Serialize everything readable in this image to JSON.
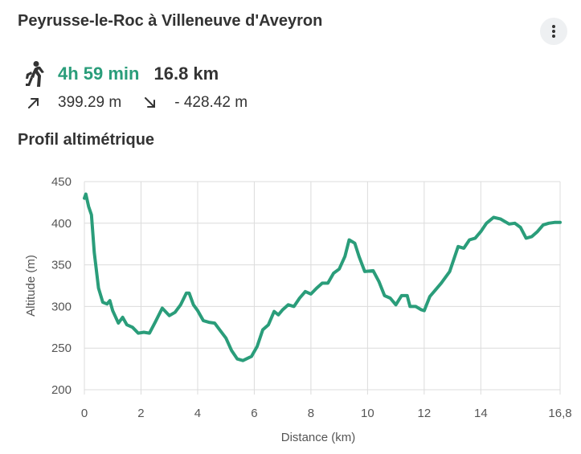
{
  "route": {
    "title": "Peyrusse-le-Roc à Villeneuve d'Aveyron",
    "duration": "4h 59 min",
    "distance": "16.8 km",
    "ascent": "399.29 m",
    "descent": "- 428.42 m",
    "accent_color": "#2a9d7a"
  },
  "icons": {
    "menu": "more-vertical-icon",
    "walk": "walking-person-icon",
    "ascent": "arrow-up-right-icon",
    "descent": "arrow-down-right-icon"
  },
  "profile": {
    "section_title": "Profil altimétrique"
  },
  "chart_data": {
    "type": "line",
    "xlabel": "Distance (km)",
    "ylabel": "Altitude (m)",
    "xlim": [
      0,
      16.8
    ],
    "ylim": [
      200,
      450
    ],
    "x_ticks": [
      "0",
      "2",
      "4",
      "6",
      "8",
      "10",
      "12",
      "14",
      "16,8"
    ],
    "x_tick_values": [
      0,
      2,
      4,
      6,
      8,
      10,
      12,
      14,
      16.8
    ],
    "y_ticks": [
      "200",
      "250",
      "300",
      "350",
      "400",
      "450"
    ],
    "y_tick_values": [
      200,
      250,
      300,
      350,
      400,
      450
    ],
    "grid": true,
    "line_color": "#2a9d7a",
    "series": [
      {
        "x": [
          0,
          0.05,
          0.15,
          0.25,
          0.35,
          0.5,
          0.65,
          0.8,
          0.9,
          1.0,
          1.2,
          1.35,
          1.5,
          1.7,
          1.9,
          2.1,
          2.3,
          2.5,
          2.75,
          3.0,
          3.2,
          3.4,
          3.6,
          3.7,
          3.85,
          4.0,
          4.2,
          4.4,
          4.6,
          4.8,
          5.0,
          5.2,
          5.4,
          5.6,
          5.9,
          6.1,
          6.3,
          6.5,
          6.7,
          6.85,
          7.0,
          7.2,
          7.4,
          7.6,
          7.8,
          8.0,
          8.2,
          8.4,
          8.6,
          8.8,
          9.0,
          9.2,
          9.35,
          9.55,
          9.7,
          9.9,
          10.2,
          10.4,
          10.6,
          10.8,
          11.0,
          11.2,
          11.4,
          11.5,
          11.7,
          11.9,
          12.0,
          12.2,
          12.4,
          12.6,
          12.9,
          13.2,
          13.4,
          13.6,
          13.8,
          14.0,
          14.2,
          14.45,
          14.7,
          15.0,
          15.2,
          15.4,
          15.6,
          15.8,
          16.0,
          16.2,
          16.4,
          16.6,
          16.8
        ],
        "y": [
          430,
          435,
          420,
          410,
          365,
          322,
          305,
          303,
          307,
          295,
          280,
          287,
          278,
          275,
          268,
          269,
          268,
          281,
          298,
          289,
          293,
          302,
          316,
          316,
          302,
          295,
          283,
          281,
          280,
          271,
          262,
          247,
          237,
          235,
          240,
          252,
          272,
          278,
          294,
          290,
          296,
          302,
          300,
          310,
          318,
          315,
          322,
          328,
          328,
          340,
          345,
          360,
          380,
          376,
          360,
          342,
          343,
          330,
          313,
          310,
          302,
          313,
          313,
          300,
          300,
          296,
          295,
          312,
          320,
          328,
          342,
          372,
          370,
          380,
          382,
          390,
          400,
          407,
          405,
          399,
          400,
          395,
          382,
          384,
          390,
          398,
          400,
          401,
          401
        ]
      }
    ]
  }
}
